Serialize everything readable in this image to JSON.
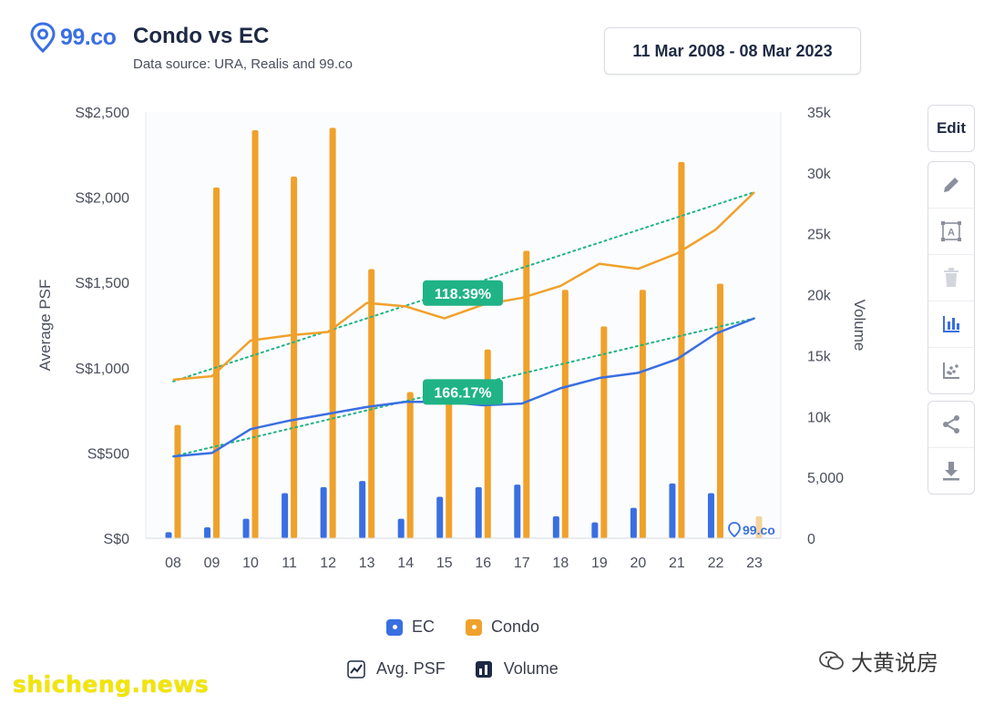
{
  "header": {
    "logo_text": "99.co",
    "title": "Condo vs EC",
    "subtitle": "Data source: URA, Realis and 99.co",
    "date_range": "11 Mar 2008 - 08 Mar 2023"
  },
  "toolbar": {
    "edit_label": "Edit",
    "icons": [
      "pencil-icon",
      "text-box-icon",
      "trash-icon",
      "bar-chart-icon",
      "scatter-chart-icon",
      "share-icon",
      "download-icon"
    ]
  },
  "legend": {
    "series": [
      {
        "label": "EC",
        "color": "#3a6fe2"
      },
      {
        "label": "Condo",
        "color": "#f0a12b"
      }
    ],
    "types": [
      {
        "label": "Avg. PSF",
        "icon": "line-chart-icon"
      },
      {
        "label": "Volume",
        "icon": "bar-chart-icon"
      }
    ]
  },
  "chart_data": {
    "type": "bar",
    "title": "Condo vs EC",
    "categories": [
      "08",
      "09",
      "10",
      "11",
      "12",
      "13",
      "14",
      "15",
      "16",
      "17",
      "18",
      "19",
      "20",
      "21",
      "22",
      "23"
    ],
    "y_left": {
      "label": "Average PSF",
      "ticks": [
        "S$0",
        "S$500",
        "S$1,000",
        "S$1,500",
        "S$2,000",
        "S$2,500"
      ],
      "range": [
        0,
        2500
      ]
    },
    "y_right": {
      "label": "Volume",
      "ticks": [
        "0",
        "5,000",
        "10k",
        "15k",
        "20k",
        "25k",
        "30k",
        "35k"
      ],
      "range": [
        0,
        35000
      ]
    },
    "series": [
      {
        "name": "Condo",
        "kind": "volume",
        "color": "#f0a12b",
        "values": [
          9300,
          28800,
          33500,
          29700,
          33700,
          22100,
          12000,
          11300,
          15500,
          23600,
          20400,
          17400,
          20400,
          30900,
          20900,
          1800
        ]
      },
      {
        "name": "EC",
        "kind": "volume",
        "color": "#3a6fe2",
        "values": [
          500,
          900,
          1600,
          3700,
          4200,
          4700,
          1600,
          3400,
          4200,
          4400,
          1800,
          1300,
          2500,
          4500,
          3700,
          0
        ]
      },
      {
        "name": "Condo",
        "kind": "avg_psf",
        "color": "#f0a12b",
        "values": [
          930,
          950,
          1160,
          1190,
          1210,
          1380,
          1360,
          1290,
          1370,
          1410,
          1480,
          1610,
          1580,
          1670,
          1810,
          2030
        ]
      },
      {
        "name": "EC",
        "kind": "avg_psf",
        "color": "#3a6fe2",
        "values": [
          480,
          500,
          640,
          690,
          730,
          770,
          800,
          800,
          780,
          790,
          880,
          940,
          970,
          1050,
          1200,
          1290
        ]
      }
    ],
    "trendlines": [
      {
        "series": "Condo",
        "from": 920,
        "to": 2030
      },
      {
        "series": "EC",
        "from": 480,
        "to": 1290
      }
    ],
    "annotations": [
      {
        "text": "118.39%",
        "series": "Condo",
        "color": "#1fb386"
      },
      {
        "text": "166.17%",
        "series": "EC",
        "color": "#1fb386"
      }
    ],
    "grid": false,
    "legend_position": "bottom"
  },
  "watermarks": {
    "left": "shicheng.news",
    "right": "大黄说房"
  }
}
